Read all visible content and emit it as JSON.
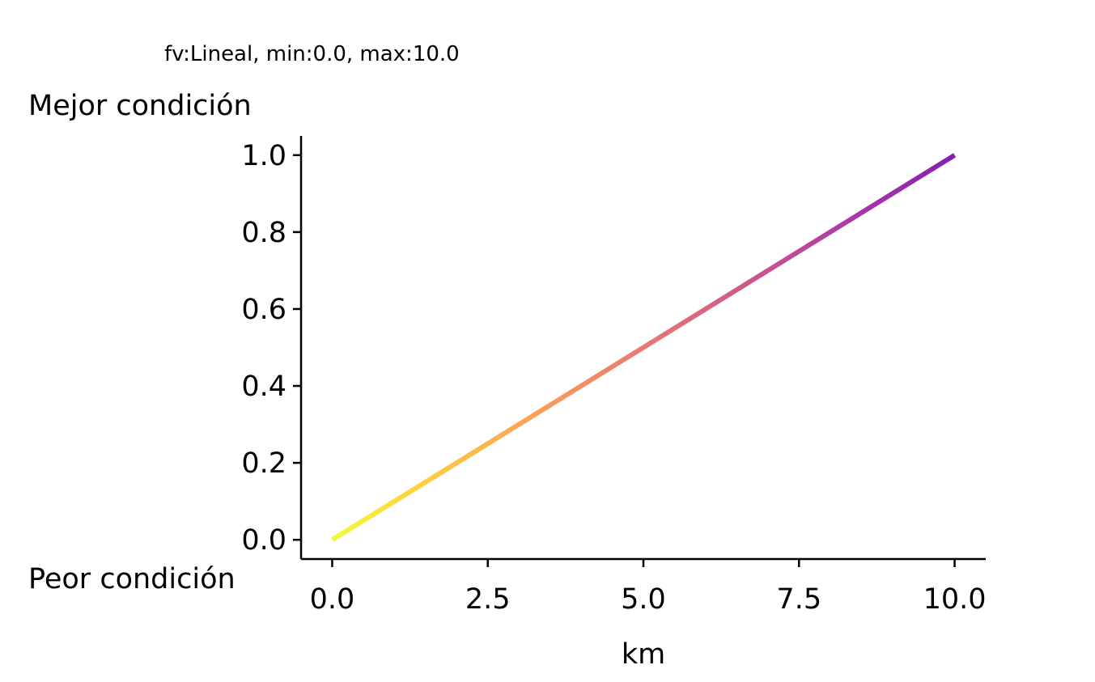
{
  "chart_data": {
    "type": "line",
    "title": "fv:Lineal, min:0.0, max:10.0",
    "xlabel": "km",
    "ylabel_top": "Mejor condición",
    "ylabel_bottom": "Peor condición",
    "xlim": [
      -0.5,
      10.5
    ],
    "ylim": [
      -0.05,
      1.05
    ],
    "x_ticks": [
      0.0,
      2.5,
      5.0,
      7.5,
      10.0
    ],
    "x_tick_labels": [
      "0.0",
      "2.5",
      "5.0",
      "7.5",
      "10.0"
    ],
    "y_ticks": [
      0.0,
      0.2,
      0.4,
      0.6,
      0.8,
      1.0
    ],
    "y_tick_labels": [
      "0.0",
      "0.2",
      "0.4",
      "0.6",
      "0.8",
      "1.0"
    ],
    "grid": false,
    "colormap": "plasma_r",
    "series": [
      {
        "x": [
          0.0,
          10.0
        ],
        "y": [
          0.0,
          1.0
        ]
      }
    ],
    "gradient_colors": [
      "#f0f921",
      "#fdca26",
      "#fb9f3a",
      "#ed7953",
      "#d8576b",
      "#bd3786",
      "#9c179e",
      "#7201a8"
    ]
  }
}
